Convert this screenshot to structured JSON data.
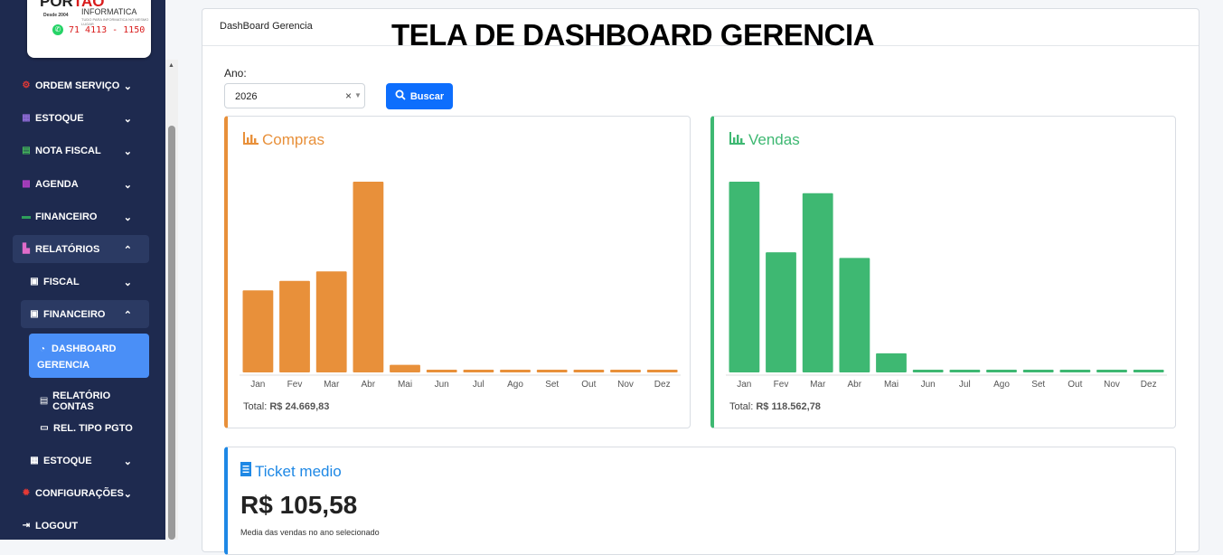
{
  "overlay_title": "TELA DE DASHBOARD GERENCIA",
  "logo": {
    "line1a": "POR",
    "line1b": "TAO",
    "line2": "INFORMATICA",
    "line3": "Desde 2004",
    "line4": "TUDO PARA INFORMATICA NO MESMO LUGAR",
    "phone": "71 4113 - 1150"
  },
  "sidebar": {
    "items": [
      {
        "label": "ORDEM SERVIÇO",
        "icon": "gears-icon",
        "color": "#e53935"
      },
      {
        "label": "ESTOQUE",
        "icon": "boxes-icon",
        "color": "#8e6bd6"
      },
      {
        "label": "NOTA FISCAL",
        "icon": "file-icon",
        "color": "#43b65a"
      },
      {
        "label": "AGENDA",
        "icon": "calendar-icon",
        "color": "#b03fc4"
      },
      {
        "label": "FINANCEIRO",
        "icon": "money-icon",
        "color": "#2e9e5b"
      },
      {
        "label": "RELATÓRIOS",
        "icon": "chart-icon",
        "color": "#e06cc9"
      },
      {
        "label": "FISCAL",
        "icon": "money-icon",
        "color": "#ffffff"
      },
      {
        "label": "FINANCEIRO",
        "icon": "money-icon",
        "color": "#ffffff"
      },
      {
        "label": "DASHBOARD GERENCIA",
        "icon": "gauge-icon",
        "color": "#ffffff"
      },
      {
        "label": "RELATÓRIO CONTAS",
        "icon": "file-icon",
        "color": "#ffffff"
      },
      {
        "label": "REL. TIPO PGTO",
        "icon": "printer-icon",
        "color": "#ffffff"
      },
      {
        "label": "ESTOQUE",
        "icon": "boxes-icon",
        "color": "#ffffff"
      },
      {
        "label": "CONFIGURAÇÕES",
        "icon": "gear-icon",
        "color": "#e53935"
      },
      {
        "label": "LOGOUT",
        "icon": "logout-icon",
        "color": "#ffffff"
      }
    ]
  },
  "card": {
    "title": "DashBoard Gerencia"
  },
  "filter": {
    "label": "Ano:",
    "value": "2026",
    "clear": "×",
    "button": "Buscar"
  },
  "compras": {
    "title": "Compras",
    "total_label": "Total:",
    "total_value": "R$ 24.669,83",
    "color": "#e8903a"
  },
  "vendas": {
    "title": "Vendas",
    "total_label": "Total:",
    "total_value": "R$ 118.562,78",
    "color": "#3eb872"
  },
  "ticket": {
    "title": "Ticket medio",
    "value": "R$ 105,58",
    "subtitle": "Media das vendas no ano selecionado",
    "color": "#1e88e5"
  },
  "chart_data": [
    {
      "type": "bar",
      "title": "Compras",
      "categories": [
        "Jan",
        "Fev",
        "Mar",
        "Abr",
        "Mai",
        "Jun",
        "Jul",
        "Ago",
        "Set",
        "Out",
        "Nov",
        "Dez"
      ],
      "values": [
        0.43,
        0.48,
        0.53,
        1.0,
        0.04,
        0.01,
        0.01,
        0.01,
        0.01,
        0.01,
        0.01,
        0.01
      ],
      "value_units": "fraction of tallest bar",
      "grid": false
    },
    {
      "type": "bar",
      "title": "Vendas",
      "categories": [
        "Jan",
        "Fev",
        "Mar",
        "Abr",
        "Mai",
        "Jun",
        "Jul",
        "Ago",
        "Set",
        "Out",
        "Nov",
        "Dez"
      ],
      "values": [
        1.0,
        0.63,
        0.94,
        0.6,
        0.1,
        0.01,
        0.01,
        0.01,
        0.01,
        0.01,
        0.01,
        0.01
      ],
      "value_units": "fraction of tallest bar",
      "grid": false
    }
  ]
}
